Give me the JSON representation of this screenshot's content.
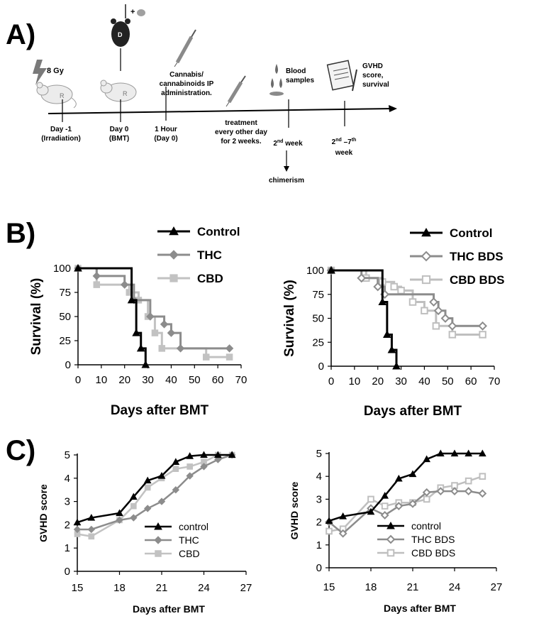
{
  "panel_labels": {
    "a": "A)",
    "b": "B)",
    "c": "C)"
  },
  "timeline": {
    "dose": "8 Gy",
    "recipient_letter": "R",
    "donor_letter": "D",
    "plus": "+",
    "events": [
      {
        "l1": "Day -1",
        "l2": "(Irradiation)"
      },
      {
        "l1": "Day 0",
        "l2": "(BMT)"
      },
      {
        "l1": "1 Hour",
        "l2": "(Day 0)"
      },
      {
        "l1": "2",
        "sup": "nd",
        "l1b": " week"
      },
      {
        "l1": "2",
        "sup": "nd",
        "l1b": " –7",
        "sup2": "th",
        "l2": "week"
      }
    ],
    "cannabis": [
      "Cannabis/",
      "cannabinoids IP",
      "administration."
    ],
    "treatment": [
      "treatment",
      "every other day",
      "for 2 weeks."
    ],
    "blood": [
      "Blood",
      "samples"
    ],
    "gvhd": [
      "GVHD",
      "score,",
      "survival"
    ],
    "chimerism": "chimerism"
  },
  "colors": {
    "control": "#000000",
    "thc": "#8c8c8c",
    "cbd": "#c2c2c2",
    "cbd_bds": "#bfbfbf"
  },
  "chart_data": [
    {
      "type": "line",
      "subtype": "kaplan-meier",
      "panel": "B-left",
      "xlabel": "Days after BMT",
      "ylabel": "Survival (%)",
      "xlim": [
        0,
        70
      ],
      "ylim": [
        0,
        100
      ],
      "xticks": [
        0,
        10,
        20,
        30,
        40,
        50,
        60,
        70
      ],
      "yticks": [
        0,
        25,
        50,
        75,
        100
      ],
      "legend_position": "top-right",
      "series": [
        {
          "name": "Control",
          "marker": "triangle",
          "x": [
            0,
            23,
            23,
            25,
            25,
            27,
            27,
            29,
            29
          ],
          "y": [
            100,
            100,
            67,
            67,
            33,
            33,
            17,
            17,
            0
          ]
        },
        {
          "name": "THC",
          "marker": "diamond",
          "x": [
            0,
            8,
            8,
            20,
            20,
            24,
            24,
            31,
            31,
            37,
            37,
            40,
            40,
            44,
            44,
            65
          ],
          "y": [
            100,
            100,
            92,
            92,
            83,
            83,
            67,
            67,
            50,
            50,
            42,
            42,
            33,
            33,
            17,
            17
          ]
        },
        {
          "name": "CBD",
          "marker": "square",
          "x": [
            0,
            8,
            8,
            22,
            22,
            26,
            26,
            30,
            30,
            33,
            33,
            36,
            36,
            55,
            55,
            65
          ],
          "y": [
            100,
            100,
            83,
            83,
            75,
            75,
            67,
            67,
            50,
            50,
            33,
            33,
            17,
            17,
            8,
            8
          ]
        }
      ]
    },
    {
      "type": "line",
      "subtype": "kaplan-meier",
      "panel": "B-right",
      "xlabel": "Days after BMT",
      "ylabel": "Survival (%)",
      "xlim": [
        0,
        70
      ],
      "ylim": [
        0,
        100
      ],
      "xticks": [
        0,
        10,
        20,
        30,
        40,
        50,
        60,
        70
      ],
      "yticks": [
        0,
        25,
        50,
        75,
        100
      ],
      "legend_position": "top-right",
      "series": [
        {
          "name": "Control",
          "marker": "triangle",
          "x": [
            0,
            22,
            22,
            24,
            24,
            26,
            26,
            28,
            28
          ],
          "y": [
            100,
            100,
            67,
            67,
            33,
            33,
            17,
            17,
            0
          ]
        },
        {
          "name": "THC BDS",
          "marker": "diamond-open",
          "x": [
            0,
            13,
            13,
            20,
            20,
            23,
            23,
            25,
            25,
            44,
            44,
            46,
            46,
            49,
            49,
            52,
            52,
            65
          ],
          "y": [
            100,
            100,
            92,
            92,
            83,
            83,
            75,
            75,
            75,
            75,
            67,
            67,
            58,
            58,
            50,
            50,
            42,
            42
          ]
        },
        {
          "name": "CBD BDS",
          "marker": "square-open",
          "x": [
            0,
            15,
            15,
            22,
            22,
            27,
            27,
            30,
            30,
            35,
            35,
            40,
            40,
            45,
            45,
            52,
            52,
            65
          ],
          "y": [
            100,
            100,
            92,
            92,
            88,
            88,
            83,
            83,
            79,
            79,
            67,
            67,
            58,
            58,
            42,
            42,
            33,
            33
          ]
        }
      ]
    },
    {
      "type": "line",
      "panel": "C-left",
      "xlabel": "Days after  BMT",
      "ylabel": "GVHD score",
      "xlim": [
        15,
        27
      ],
      "ylim": [
        0,
        5
      ],
      "xticks": [
        15,
        18,
        21,
        24,
        27
      ],
      "yticks": [
        0,
        1,
        2,
        3,
        4,
        5
      ],
      "legend_position": "bottom-right",
      "series": [
        {
          "name": "control",
          "marker": "triangle",
          "x": [
            15,
            16,
            18,
            19,
            20,
            21,
            22,
            23,
            24,
            25,
            26
          ],
          "y": [
            2.1,
            2.3,
            2.5,
            3.2,
            3.9,
            4.1,
            4.7,
            4.95,
            5.0,
            5.0,
            5.0
          ]
        },
        {
          "name": "THC",
          "marker": "diamond",
          "x": [
            15,
            16,
            18,
            19,
            20,
            21,
            22,
            23,
            24,
            25,
            26
          ],
          "y": [
            1.8,
            1.8,
            2.2,
            2.3,
            2.7,
            3.0,
            3.5,
            4.1,
            4.5,
            4.8,
            5.0
          ]
        },
        {
          "name": "CBD",
          "marker": "square",
          "x": [
            15,
            16,
            18,
            19,
            20,
            21,
            22,
            23,
            24,
            25,
            26
          ],
          "y": [
            1.6,
            1.5,
            2.2,
            2.8,
            3.6,
            4.0,
            4.4,
            4.5,
            4.7,
            5.0,
            5.0
          ]
        }
      ]
    },
    {
      "type": "line",
      "panel": "C-right",
      "xlabel": "Days after BMT",
      "ylabel": "GVHD score",
      "xlim": [
        15,
        27
      ],
      "ylim": [
        0,
        5
      ],
      "xticks": [
        15,
        18,
        21,
        24,
        27
      ],
      "yticks": [
        0,
        1,
        2,
        3,
        4,
        5
      ],
      "legend_position": "bottom-right",
      "series": [
        {
          "name": "control",
          "marker": "triangle",
          "x": [
            15,
            16,
            18,
            19,
            20,
            21,
            22,
            23,
            24,
            25,
            26
          ],
          "y": [
            2.05,
            2.25,
            2.45,
            3.15,
            3.9,
            4.1,
            4.75,
            5.0,
            5.0,
            5.0,
            5.0
          ]
        },
        {
          "name": "THC BDS",
          "marker": "diamond-open",
          "x": [
            15,
            16,
            18,
            19,
            20,
            21,
            22,
            23,
            24,
            25,
            26
          ],
          "y": [
            2.0,
            1.5,
            2.6,
            2.3,
            2.7,
            2.8,
            3.3,
            3.35,
            3.35,
            3.35,
            3.25
          ]
        },
        {
          "name": "CBD BDS",
          "marker": "square-open",
          "x": [
            15,
            16,
            18,
            19,
            20,
            21,
            22,
            23,
            24,
            25,
            26
          ],
          "y": [
            1.6,
            1.7,
            3.0,
            2.7,
            2.85,
            2.85,
            3.0,
            3.5,
            3.6,
            3.8,
            4.0
          ]
        }
      ]
    }
  ]
}
